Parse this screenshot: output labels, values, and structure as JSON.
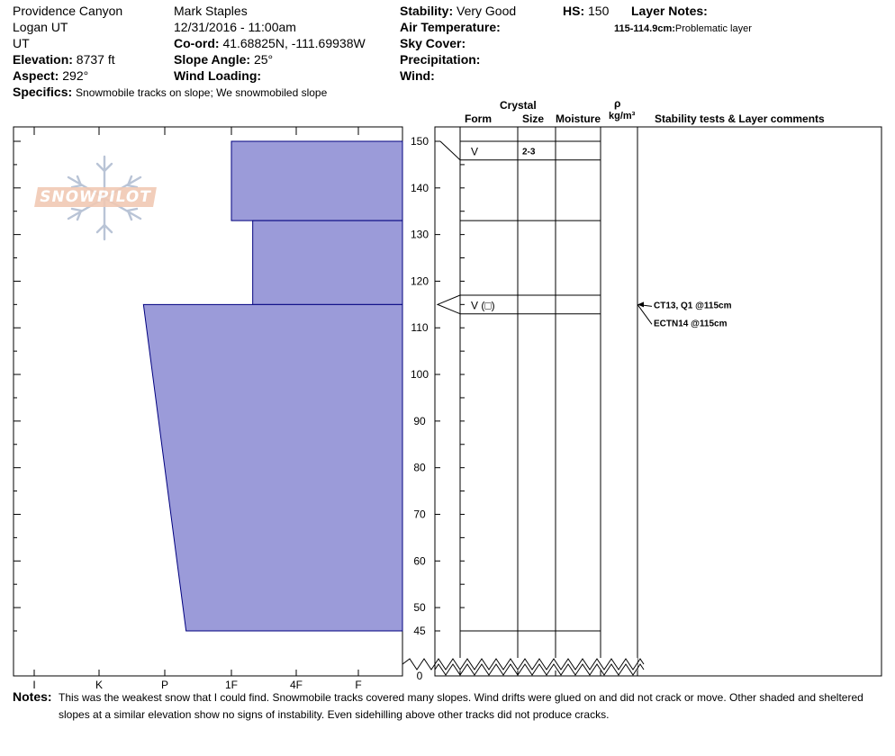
{
  "header": {
    "location": "Providence Canyon",
    "region": "Logan UT",
    "state": "UT",
    "elevation_label": "Elevation:",
    "elevation_value": "8737 ft",
    "aspect_label": "Aspect:",
    "aspect_value": "292°",
    "observer": "Mark Staples",
    "datetime": "12/31/2016 - 11:00am",
    "coord_label": "Co-ord:",
    "coord_value": "41.68825N, -111.69938W",
    "slope_label": "Slope Angle:",
    "slope_value": "25°",
    "wind_loading_label": "Wind Loading:",
    "stability_label": "Stability:",
    "stability_value": "Very Good",
    "air_temp_label": "Air Temperature:",
    "sky_cover_label": "Sky Cover:",
    "precip_label": "Precipitation:",
    "wind_label": "Wind:",
    "hs_label": "HS:",
    "hs_value": "150",
    "layer_notes_label": "Layer Notes:",
    "layer_note_range": "115-114.9cm:",
    "layer_note_text": "Problematic layer",
    "specifics_label": "Specifics:",
    "specifics_value": "Snowmobile tracks on slope; We snowmobiled slope"
  },
  "logo_text": "SNOWPILOT",
  "columns": {
    "crystal": "Crystal",
    "form": "Form",
    "size": "Size",
    "moisture": "Moisture",
    "rho": "ρ",
    "density_unit": "kg/m³",
    "stability_comments": "Stability tests & Layer comments"
  },
  "chart_data": {
    "type": "area",
    "title": "",
    "ylabel": "",
    "xlabel": "",
    "hardness_scale": [
      "I",
      "K",
      "P",
      "1F",
      "4F",
      "F"
    ],
    "ylim": [
      0,
      150
    ],
    "y_ticks": [
      150,
      140,
      130,
      120,
      110,
      100,
      90,
      80,
      70,
      60,
      50,
      45,
      0
    ],
    "hardness_profile": [
      {
        "top": 150,
        "bottom": 133,
        "hardness_top": "1F",
        "hardness_bottom": "1F"
      },
      {
        "top": 133,
        "bottom": 115,
        "hardness_top": "1F-",
        "hardness_bottom": "1F-"
      },
      {
        "top": 115,
        "bottom": 45,
        "hardness_top": "P+",
        "hardness_bottom": "P-"
      }
    ],
    "layer_boundaries": [
      150,
      146,
      133,
      117,
      113,
      45
    ],
    "layers": [
      {
        "top": 150,
        "bottom": 146,
        "form": "V",
        "size": "2-3"
      },
      {
        "top": 117,
        "bottom": 113,
        "form": "V (□)",
        "size": ""
      }
    ],
    "stability_tests": [
      {
        "text": "CT13, Q1 @115cm",
        "depth": 115
      },
      {
        "text": "ECTN14 @115cm",
        "depth": 115
      }
    ],
    "grid": false,
    "colors": {
      "fill": "#9b9bd9",
      "outline": "#00007f"
    }
  },
  "notes_label": "Notes:",
  "notes_line1": "This was the weakest snow that I could find. Snowmobile tracks covered many slopes. Wind drifts were glued on and did not crack or move. Other shaded and sheltered",
  "notes_line2": "slopes at a similar elevation show no signs of instability. Even sidehilling above other tracks did not produce cracks."
}
